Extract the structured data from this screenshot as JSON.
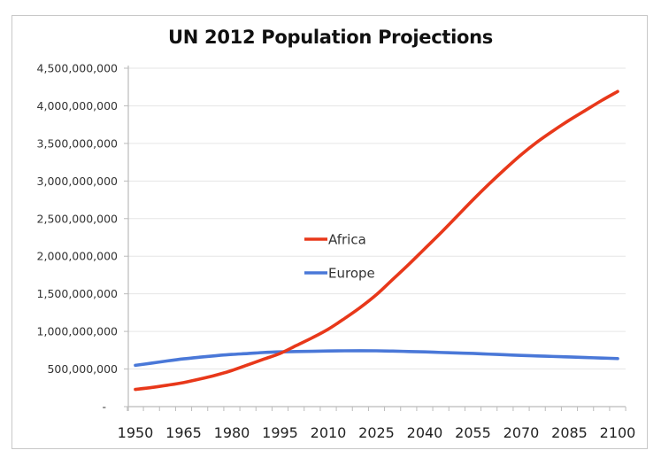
{
  "chart_data": {
    "type": "line",
    "title": "UN 2012 Population Projections",
    "xlabel": "",
    "ylabel": "",
    "ylim": [
      0,
      4500000000
    ],
    "grid": true,
    "legend_position": "center",
    "y_ticks": [
      0,
      500000000,
      1000000000,
      1500000000,
      2000000000,
      2500000000,
      3000000000,
      3500000000,
      4000000000,
      4500000000
    ],
    "y_tick_labels": [
      "-",
      "500,000,000",
      "1,000,000,000",
      "1,500,000,000",
      "2,000,000,000",
      "2,500,000,000",
      "3,000,000,000",
      "3,500,000,000",
      "4,000,000,000",
      "4,500,000,000"
    ],
    "x": [
      1950,
      1955,
      1960,
      1965,
      1970,
      1975,
      1980,
      1985,
      1990,
      1995,
      2000,
      2005,
      2010,
      2015,
      2020,
      2025,
      2030,
      2035,
      2040,
      2045,
      2050,
      2055,
      2060,
      2065,
      2070,
      2075,
      2080,
      2085,
      2090,
      2095,
      2100
    ],
    "x_tick_labels": [
      "1950",
      "1965",
      "1980",
      "1995",
      "2010",
      "2025",
      "2040",
      "2055",
      "2070",
      "2085",
      "2100"
    ],
    "series": [
      {
        "name": "Africa",
        "color": "#e8381a",
        "values": [
          229000000,
          254000000,
          285000000,
          320000000,
          366000000,
          418000000,
          480000000,
          556000000,
          632000000,
          707000000,
          811000000,
          915000000,
          1030000000,
          1170000000,
          1320000000,
          1490000000,
          1690000000,
          1890000000,
          2100000000,
          2310000000,
          2530000000,
          2750000000,
          2960000000,
          3160000000,
          3350000000,
          3520000000,
          3670000000,
          3810000000,
          3940000000,
          4070000000,
          4190000000
        ]
      },
      {
        "name": "Europe",
        "color": "#4a78d8",
        "values": [
          549000000,
          578000000,
          608000000,
          635000000,
          657000000,
          677000000,
          694000000,
          706000000,
          720000000,
          728000000,
          732000000,
          736000000,
          740000000,
          742000000,
          743000000,
          742000000,
          738000000,
          733000000,
          728000000,
          720000000,
          713000000,
          707000000,
          698000000,
          690000000,
          681000000,
          674000000,
          667000000,
          660000000,
          653000000,
          646000000,
          639000000
        ]
      }
    ]
  }
}
